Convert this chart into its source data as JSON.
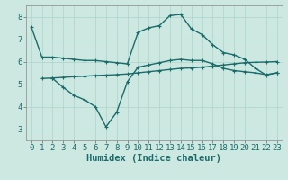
{
  "title": "",
  "xlabel": "Humidex (Indice chaleur)",
  "ylabel": "",
  "bg_color": "#cce8e0",
  "grid_color": "#aad4cc",
  "line_color": "#1a6b6b",
  "xlim": [
    -0.5,
    23.5
  ],
  "ylim": [
    2.5,
    8.5
  ],
  "xticks": [
    0,
    1,
    2,
    3,
    4,
    5,
    6,
    7,
    8,
    9,
    10,
    11,
    12,
    13,
    14,
    15,
    16,
    17,
    18,
    19,
    20,
    21,
    22,
    23
  ],
  "yticks": [
    3,
    4,
    5,
    6,
    7,
    8
  ],
  "curve1_x": [
    0,
    1,
    2,
    3,
    4,
    5,
    6,
    7,
    8,
    9,
    10,
    11,
    12,
    13,
    14,
    15,
    16,
    17,
    18,
    19,
    20,
    21,
    22,
    23
  ],
  "curve1_y": [
    7.55,
    6.2,
    6.2,
    6.15,
    6.1,
    6.05,
    6.05,
    6.0,
    5.95,
    5.9,
    7.3,
    7.5,
    7.6,
    8.05,
    8.1,
    7.45,
    7.2,
    6.75,
    6.4,
    6.3,
    6.1,
    5.7,
    5.4,
    5.5
  ],
  "curve2_x": [
    1,
    2,
    3,
    4,
    5,
    6,
    7,
    8,
    9,
    10,
    11,
    12,
    13,
    14,
    15,
    16,
    17,
    18,
    19,
    20,
    21,
    22,
    23
  ],
  "curve2_y": [
    5.25,
    5.27,
    5.3,
    5.33,
    5.35,
    5.38,
    5.4,
    5.42,
    5.45,
    5.5,
    5.55,
    5.6,
    5.65,
    5.7,
    5.72,
    5.75,
    5.8,
    5.85,
    5.9,
    5.95,
    5.97,
    5.98,
    6.0
  ],
  "curve3_x": [
    2,
    3,
    4,
    5,
    6,
    7,
    8,
    9,
    10,
    11,
    12,
    13,
    14,
    15,
    16,
    17,
    18,
    19,
    20,
    21,
    22,
    23
  ],
  "curve3_y": [
    5.25,
    4.85,
    4.5,
    4.3,
    4.0,
    3.1,
    3.75,
    5.1,
    5.75,
    5.85,
    5.95,
    6.05,
    6.1,
    6.05,
    6.05,
    5.9,
    5.7,
    5.6,
    5.55,
    5.5,
    5.42,
    5.5
  ],
  "marker": "+",
  "markersize": 3.5,
  "linewidth": 1.0,
  "tick_fontsize": 6.5,
  "xlabel_fontsize": 7.5
}
